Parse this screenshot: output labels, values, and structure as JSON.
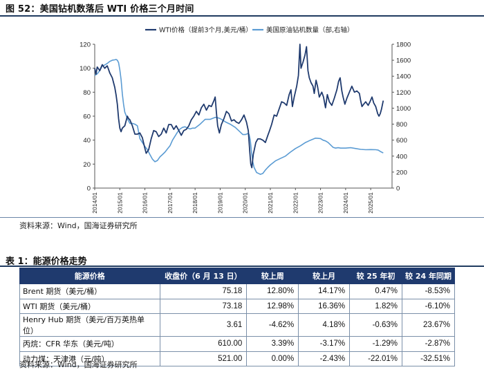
{
  "figure": {
    "title": "图 52：美国钻机数落后 WTI 价格三个月时间"
  },
  "chart_data": {
    "type": "line",
    "title": "",
    "series": [
      {
        "name": "WTI价格（提前3个月,美元/桶）",
        "axis": "left",
        "color": "#1f3a6e",
        "points": [
          [
            2014.0,
            100
          ],
          [
            2014.05,
            95
          ],
          [
            2014.1,
            101
          ],
          [
            2014.2,
            98
          ],
          [
            2014.3,
            103
          ],
          [
            2014.4,
            100
          ],
          [
            2014.5,
            102
          ],
          [
            2014.55,
            99
          ],
          [
            2014.6,
            96
          ],
          [
            2014.7,
            92
          ],
          [
            2014.8,
            84
          ],
          [
            2014.85,
            78
          ],
          [
            2014.9,
            70
          ],
          [
            2014.95,
            58
          ],
          [
            2015.0,
            50
          ],
          [
            2015.05,
            47
          ],
          [
            2015.1,
            50
          ],
          [
            2015.2,
            52
          ],
          [
            2015.3,
            60
          ],
          [
            2015.35,
            58
          ],
          [
            2015.4,
            57
          ],
          [
            2015.5,
            52
          ],
          [
            2015.6,
            45
          ],
          [
            2015.7,
            45
          ],
          [
            2015.8,
            46
          ],
          [
            2015.9,
            42
          ],
          [
            2016.0,
            33
          ],
          [
            2016.05,
            29
          ],
          [
            2016.15,
            32
          ],
          [
            2016.25,
            41
          ],
          [
            2016.35,
            48
          ],
          [
            2016.45,
            47
          ],
          [
            2016.55,
            43
          ],
          [
            2016.65,
            45
          ],
          [
            2016.75,
            50
          ],
          [
            2016.85,
            46
          ],
          [
            2016.95,
            53
          ],
          [
            2017.05,
            53
          ],
          [
            2017.15,
            49
          ],
          [
            2017.25,
            52
          ],
          [
            2017.35,
            48
          ],
          [
            2017.45,
            44
          ],
          [
            2017.55,
            48
          ],
          [
            2017.65,
            49
          ],
          [
            2017.75,
            52
          ],
          [
            2017.85,
            57
          ],
          [
            2017.95,
            60
          ],
          [
            2018.05,
            64
          ],
          [
            2018.15,
            61
          ],
          [
            2018.25,
            67
          ],
          [
            2018.35,
            70
          ],
          [
            2018.45,
            65
          ],
          [
            2018.55,
            69
          ],
          [
            2018.65,
            68
          ],
          [
            2018.75,
            73
          ],
          [
            2018.8,
            76
          ],
          [
            2018.85,
            63
          ],
          [
            2018.9,
            52
          ],
          [
            2018.97,
            46
          ],
          [
            2019.05,
            53
          ],
          [
            2019.15,
            58
          ],
          [
            2019.25,
            64
          ],
          [
            2019.35,
            62
          ],
          [
            2019.45,
            56
          ],
          [
            2019.55,
            57
          ],
          [
            2019.65,
            55
          ],
          [
            2019.75,
            54
          ],
          [
            2019.85,
            57
          ],
          [
            2019.95,
            61
          ],
          [
            2020.05,
            55
          ],
          [
            2020.12,
            48
          ],
          [
            2020.18,
            30
          ],
          [
            2020.22,
            20
          ],
          [
            2020.26,
            17
          ],
          [
            2020.32,
            28
          ],
          [
            2020.42,
            38
          ],
          [
            2020.5,
            41
          ],
          [
            2020.6,
            41
          ],
          [
            2020.7,
            40
          ],
          [
            2020.8,
            38
          ],
          [
            2020.9,
            44
          ],
          [
            2020.97,
            48
          ],
          [
            2021.05,
            53
          ],
          [
            2021.15,
            61
          ],
          [
            2021.25,
            60
          ],
          [
            2021.35,
            66
          ],
          [
            2021.45,
            72
          ],
          [
            2021.55,
            71
          ],
          [
            2021.65,
            69
          ],
          [
            2021.75,
            78
          ],
          [
            2021.82,
            82
          ],
          [
            2021.88,
            68
          ],
          [
            2021.95,
            76
          ],
          [
            2022.05,
            85
          ],
          [
            2022.12,
            94
          ],
          [
            2022.18,
            120
          ],
          [
            2022.22,
            100
          ],
          [
            2022.3,
            105
          ],
          [
            2022.38,
            111
          ],
          [
            2022.44,
            118
          ],
          [
            2022.5,
            98
          ],
          [
            2022.55,
            92
          ],
          [
            2022.62,
            88
          ],
          [
            2022.7,
            85
          ],
          [
            2022.75,
            79
          ],
          [
            2022.82,
            90
          ],
          [
            2022.88,
            85
          ],
          [
            2022.95,
            76
          ],
          [
            2023.05,
            80
          ],
          [
            2023.12,
            76
          ],
          [
            2023.2,
            67
          ],
          [
            2023.27,
            78
          ],
          [
            2023.35,
            72
          ],
          [
            2023.45,
            69
          ],
          [
            2023.55,
            75
          ],
          [
            2023.65,
            82
          ],
          [
            2023.72,
            89
          ],
          [
            2023.78,
            92
          ],
          [
            2023.85,
            81
          ],
          [
            2023.9,
            76
          ],
          [
            2023.97,
            70
          ],
          [
            2024.05,
            75
          ],
          [
            2024.15,
            80
          ],
          [
            2024.25,
            85
          ],
          [
            2024.35,
            80
          ],
          [
            2024.45,
            81
          ],
          [
            2024.55,
            79
          ],
          [
            2024.6,
            73
          ],
          [
            2024.65,
            68
          ],
          [
            2024.72,
            70
          ],
          [
            2024.8,
            72
          ],
          [
            2024.9,
            69
          ],
          [
            2024.97,
            72
          ],
          [
            2025.05,
            76
          ],
          [
            2025.12,
            71
          ],
          [
            2025.2,
            68
          ],
          [
            2025.28,
            62
          ],
          [
            2025.33,
            60
          ],
          [
            2025.38,
            62
          ],
          [
            2025.43,
            66
          ],
          [
            2025.5,
            73
          ]
        ]
      },
      {
        "name": "美国原油钻机数量（部,右轴）",
        "axis": "right",
        "color": "#5a9bd3",
        "points": [
          [
            2014.0,
            1410
          ],
          [
            2014.1,
            1430
          ],
          [
            2014.2,
            1470
          ],
          [
            2014.3,
            1530
          ],
          [
            2014.4,
            1540
          ],
          [
            2014.5,
            1560
          ],
          [
            2014.6,
            1585
          ],
          [
            2014.7,
            1600
          ],
          [
            2014.8,
            1605
          ],
          [
            2014.85,
            1610
          ],
          [
            2014.9,
            1600
          ],
          [
            2014.95,
            1570
          ],
          [
            2015.0,
            1480
          ],
          [
            2015.05,
            1360
          ],
          [
            2015.1,
            1180
          ],
          [
            2015.15,
            1050
          ],
          [
            2015.2,
            950
          ],
          [
            2015.3,
            870
          ],
          [
            2015.4,
            810
          ],
          [
            2015.5,
            810
          ],
          [
            2015.6,
            800
          ],
          [
            2015.7,
            780
          ],
          [
            2015.8,
            620
          ],
          [
            2015.9,
            570
          ],
          [
            2016.0,
            520
          ],
          [
            2016.1,
            480
          ],
          [
            2016.2,
            420
          ],
          [
            2016.3,
            362
          ],
          [
            2016.4,
            330
          ],
          [
            2016.5,
            345
          ],
          [
            2016.6,
            390
          ],
          [
            2016.7,
            420
          ],
          [
            2016.8,
            450
          ],
          [
            2016.9,
            490
          ],
          [
            2017.0,
            530
          ],
          [
            2017.1,
            600
          ],
          [
            2017.2,
            650
          ],
          [
            2017.3,
            700
          ],
          [
            2017.4,
            740
          ],
          [
            2017.5,
            760
          ],
          [
            2017.6,
            768
          ],
          [
            2017.7,
            750
          ],
          [
            2017.8,
            740
          ],
          [
            2017.9,
            750
          ],
          [
            2018.0,
            750
          ],
          [
            2018.2,
            800
          ],
          [
            2018.4,
            860
          ],
          [
            2018.6,
            860
          ],
          [
            2018.8,
            885
          ],
          [
            2018.9,
            880
          ],
          [
            2019.0,
            870
          ],
          [
            2019.2,
            830
          ],
          [
            2019.4,
            800
          ],
          [
            2019.6,
            760
          ],
          [
            2019.8,
            700
          ],
          [
            2019.9,
            670
          ],
          [
            2020.0,
            670
          ],
          [
            2020.1,
            682
          ],
          [
            2020.15,
            672
          ],
          [
            2020.2,
            600
          ],
          [
            2020.25,
            450
          ],
          [
            2020.3,
            330
          ],
          [
            2020.35,
            260
          ],
          [
            2020.45,
            195
          ],
          [
            2020.55,
            180
          ],
          [
            2020.6,
            172
          ],
          [
            2020.7,
            183
          ],
          [
            2020.8,
            226
          ],
          [
            2020.9,
            260
          ],
          [
            2021.0,
            290
          ],
          [
            2021.2,
            340
          ],
          [
            2021.4,
            370
          ],
          [
            2021.6,
            400
          ],
          [
            2021.8,
            450
          ],
          [
            2022.0,
            495
          ],
          [
            2022.2,
            530
          ],
          [
            2022.4,
            570
          ],
          [
            2022.6,
            600
          ],
          [
            2022.8,
            625
          ],
          [
            2022.9,
            622
          ],
          [
            2023.0,
            620
          ],
          [
            2023.1,
            600
          ],
          [
            2023.2,
            590
          ],
          [
            2023.3,
            570
          ],
          [
            2023.4,
            540
          ],
          [
            2023.5,
            510
          ],
          [
            2023.6,
            500
          ],
          [
            2023.7,
            505
          ],
          [
            2023.8,
            500
          ],
          [
            2023.9,
            500
          ],
          [
            2024.0,
            500
          ],
          [
            2024.2,
            505
          ],
          [
            2024.4,
            495
          ],
          [
            2024.6,
            485
          ],
          [
            2024.8,
            480
          ],
          [
            2025.0,
            482
          ],
          [
            2025.2,
            480
          ],
          [
            2025.3,
            475
          ],
          [
            2025.4,
            455
          ],
          [
            2025.5,
            440
          ]
        ]
      }
    ],
    "x_ticks": [
      "2014/01",
      "2015/01",
      "2016/01",
      "2017/01",
      "2018/01",
      "2019/01",
      "2020/01",
      "2021/01",
      "2022/01",
      "2023/01",
      "2024/01",
      "2025/01"
    ],
    "x_range": [
      2014.0,
      2025.85
    ],
    "y_left": {
      "range": [
        0,
        120
      ],
      "ticks": [
        "0",
        "20",
        "40",
        "60",
        "80",
        "100",
        "120"
      ]
    },
    "y_right": {
      "range": [
        0,
        1800
      ],
      "ticks": [
        "0",
        "200",
        "400",
        "600",
        "800",
        "1000",
        "1200",
        "1400",
        "1600",
        "1800"
      ]
    },
    "legend": "top-center"
  },
  "source_chart": "资料来源：Wind，国海证券研究所",
  "table": {
    "title": "表 1：能源价格走势",
    "headers": [
      "能源价格",
      "收盘价（6 月 13 日）",
      "较上周",
      "较上月",
      "较 25 年初",
      "较 24 年同期"
    ],
    "rows": [
      [
        "Brent 期货（美元/桶）",
        "75.18",
        "12.80%",
        "14.17%",
        "0.47%",
        "-8.53%"
      ],
      [
        "WTI 期货（美元/桶）",
        "73.18",
        "12.98%",
        "16.36%",
        "1.82%",
        "-6.10%"
      ],
      [
        "Henry Hub 期货（美元/百万英热单位）",
        "3.61",
        "-4.62%",
        "4.18%",
        "-0.63%",
        "23.67%"
      ],
      [
        "丙烷：CFR 华东（美元/吨）",
        "610.00",
        "3.39%",
        "-3.17%",
        "-1.29%",
        "-2.87%"
      ],
      [
        "动力煤：天津港（元/吨）",
        "521.00",
        "0.00%",
        "-2.43%",
        "-22.01%",
        "-32.51%"
      ]
    ]
  },
  "source_table": "资料来源：Wind，国海证券研究所"
}
